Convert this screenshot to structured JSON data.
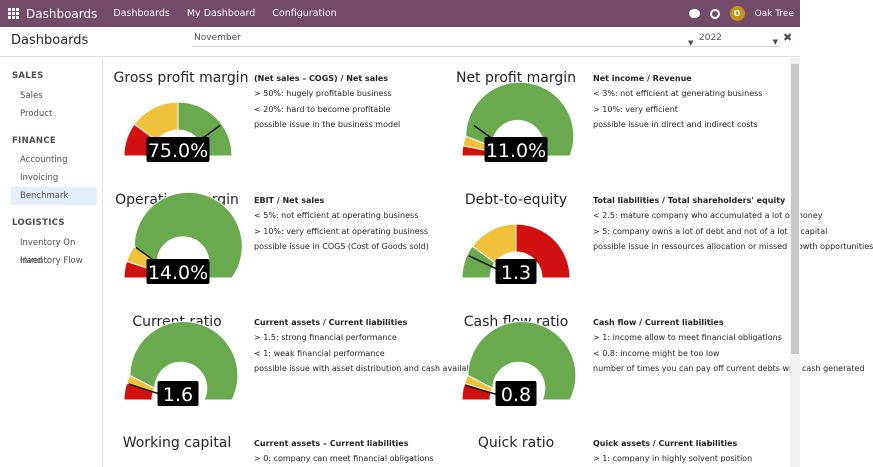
{
  "topbar": {
    "app_name": "Dashboards",
    "menu": [
      "Dashboards",
      "My Dashboard",
      "Configuration"
    ],
    "avatar_letter": "O",
    "company": "Oak Tree"
  },
  "control": {
    "title": "Dashboards",
    "month": "November",
    "year": "2022"
  },
  "sidebar": {
    "sections": [
      {
        "title": "SALES",
        "items": [
          "Sales",
          "Product"
        ]
      },
      {
        "title": "FINANCE",
        "items": [
          "Accounting",
          "Invoicing",
          "Benchmark"
        ]
      },
      {
        "title": "LOGISTICS",
        "items": [
          "Inventory On Hand",
          "Inventory Flow"
        ]
      }
    ],
    "active": "Benchmark"
  },
  "colors": {
    "green": "#6aaa4f",
    "yellow": "#f0c23c",
    "red": "#d0110f",
    "topbar": "#714b67"
  },
  "cards": [
    {
      "title": "Gross profit margin",
      "value": "75.0%",
      "segments": [
        0.2,
        0.3,
        0.5
      ],
      "needle": 0.8,
      "header": "(Net sales – COGS) / Net sales",
      "lines": [
        "> 50%: hugely profitable business",
        "< 20%: hard to become profitable",
        "possible issue in the business model"
      ]
    },
    {
      "title": "Net profit margin",
      "value": "11.0%",
      "segments": [
        0.06,
        0.06,
        0.88
      ],
      "needle": 0.2,
      "header": "Net income / Revenue",
      "lines": [
        "< 3%: not efficient at generating business",
        "> 10%: very efficient",
        "possible issue in direct and indirect costs"
      ]
    },
    {
      "title": "Operating margin",
      "value": "14.0%",
      "segments": [
        0.1,
        0.1,
        0.8
      ],
      "needle": 0.2,
      "header": "EBIT / Net sales",
      "lines": [
        "< 5%: not efficient at operating business",
        "> 10%: very efficient at operating business",
        "possible issue in COGS (Cost of Goods sold)"
      ]
    },
    {
      "title": "Debt-to-equity",
      "value": "1.3",
      "segments": [
        0.2,
        0.3,
        0.5
      ],
      "needle": 0.14,
      "reverse": true,
      "header": "Total liabilities / Total shareholders' equity",
      "lines": [
        "< 2.5: mature company who accumulated a lot of money",
        "> 5: company owns a lot of debt and not of a lot of capital",
        "possible issue in ressources allocation or missed growth opportunities"
      ]
    },
    {
      "title": "Current ratio",
      "value": "1.6",
      "segments": [
        0.1,
        0.05,
        0.85
      ],
      "needle": 0.1,
      "header": "Current assets / Current liabilities",
      "lines": [
        "> 1.5: strong financial performance",
        "< 1: weak financial performance",
        "possible issue with asset distribution and cash availability"
      ]
    },
    {
      "title": "Cash flow ratio",
      "value": "0.8",
      "segments": [
        0.1,
        0.05,
        0.85
      ],
      "needle": 0.09,
      "header": "Cash flow / Current liabilities",
      "lines": [
        "> 1: income allow to meet financial obligations",
        "< 0.8: income might be too low",
        "number of times you can pay off current debts with cash generated"
      ]
    },
    {
      "title": "Working capital",
      "value": "",
      "segments": [],
      "needle": 0,
      "header": "Current assets – Current liabilities",
      "lines": [
        "> 0: company can meet financial obligations",
        "",
        ""
      ]
    },
    {
      "title": "Quick ratio",
      "value": "",
      "segments": [],
      "needle": 0,
      "header": "Quick assets / Current liabilities",
      "lines": [
        "> 1: company in highly solvent position",
        "",
        ""
      ]
    }
  ]
}
